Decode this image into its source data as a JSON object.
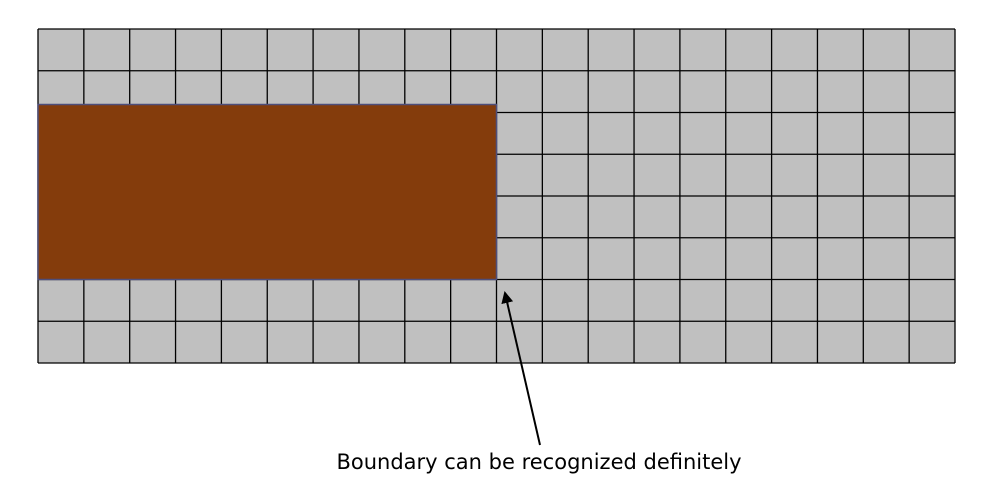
{
  "diagram": {
    "grid": {
      "columns": 20,
      "rows": 8,
      "cell_color": "#c0c0c0",
      "line_color": "#000000"
    },
    "region": {
      "columns": 10,
      "rows": 4,
      "start_row": 2,
      "color": "#843c0c",
      "outline_color": "#4e4e7a"
    },
    "annotation": {
      "text": "Boundary can be recognized definitely"
    }
  }
}
